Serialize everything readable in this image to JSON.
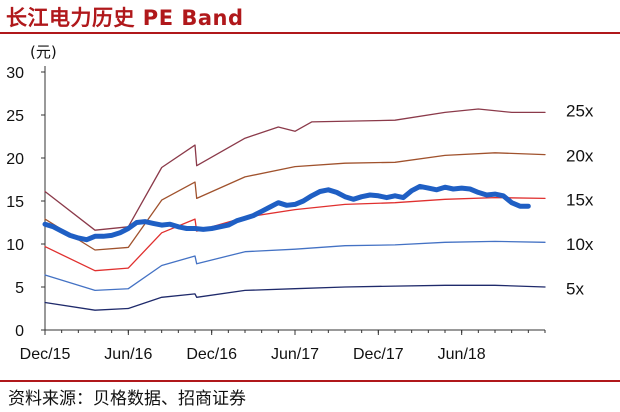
{
  "title": "长江电力历史 PE Band",
  "source": "资料来源：贝格数据、招商证券",
  "chart_data": {
    "type": "line",
    "title": "长江电力历史 PE Band",
    "ylabel": "(元)",
    "ylim": [
      0,
      30
    ],
    "yticks": [
      "0",
      "5",
      "10",
      "15",
      "20",
      "25",
      "30"
    ],
    "xticks": [
      "Dec/15",
      "Jun/16",
      "Dec/16",
      "Jun/17",
      "Dec/17",
      "Jun/18"
    ],
    "grid": false,
    "series": [
      {
        "name": "5x",
        "color": "#1f2a6b",
        "points": [
          [
            0,
            3.2
          ],
          [
            6,
            2.3
          ],
          [
            10,
            2.5
          ],
          [
            14,
            3.8
          ],
          [
            18,
            4.2
          ],
          [
            18.2,
            3.8
          ],
          [
            24,
            4.6
          ],
          [
            30,
            4.8
          ],
          [
            36,
            5.0
          ],
          [
            42,
            5.1
          ],
          [
            48,
            5.2
          ],
          [
            54,
            5.2
          ],
          [
            60,
            5.0
          ]
        ]
      },
      {
        "name": "10x",
        "color": "#4472c4",
        "points": [
          [
            0,
            6.4
          ],
          [
            6,
            4.6
          ],
          [
            10,
            4.8
          ],
          [
            14,
            7.5
          ],
          [
            18,
            8.6
          ],
          [
            18.2,
            7.7
          ],
          [
            24,
            9.1
          ],
          [
            30,
            9.4
          ],
          [
            36,
            9.8
          ],
          [
            42,
            9.9
          ],
          [
            48,
            10.2
          ],
          [
            54,
            10.3
          ],
          [
            60,
            10.2
          ]
        ]
      },
      {
        "name": "15x",
        "color": "#e0302f",
        "points": [
          [
            0,
            9.7
          ],
          [
            6,
            6.9
          ],
          [
            10,
            7.2
          ],
          [
            14,
            11.3
          ],
          [
            18,
            12.9
          ],
          [
            18.2,
            11.5
          ],
          [
            24,
            13.1
          ],
          [
            30,
            14.0
          ],
          [
            36,
            14.6
          ],
          [
            42,
            14.8
          ],
          [
            48,
            15.2
          ],
          [
            54,
            15.4
          ],
          [
            60,
            15.3
          ]
        ]
      },
      {
        "name": "20x",
        "color": "#a0522d",
        "points": [
          [
            0,
            12.9
          ],
          [
            6,
            9.3
          ],
          [
            10,
            9.6
          ],
          [
            14,
            15.1
          ],
          [
            18,
            17.2
          ],
          [
            18.2,
            15.3
          ],
          [
            24,
            17.8
          ],
          [
            30,
            19.0
          ],
          [
            36,
            19.4
          ],
          [
            42,
            19.5
          ],
          [
            48,
            20.3
          ],
          [
            54,
            20.6
          ],
          [
            60,
            20.4
          ]
        ]
      },
      {
        "name": "25x",
        "color": "#8b3a4a",
        "points": [
          [
            0,
            16.1
          ],
          [
            6,
            11.6
          ],
          [
            10,
            12.0
          ],
          [
            14,
            18.9
          ],
          [
            18,
            21.5
          ],
          [
            18.2,
            19.1
          ],
          [
            24,
            22.3
          ],
          [
            28,
            23.6
          ],
          [
            30,
            23.1
          ],
          [
            32,
            24.2
          ],
          [
            42,
            24.4
          ],
          [
            48,
            25.3
          ],
          [
            52,
            25.7
          ],
          [
            56,
            25.3
          ],
          [
            60,
            25.3
          ]
        ]
      },
      {
        "name": "",
        "color": "#1f5fc4",
        "points": [
          [
            0,
            12.3
          ],
          [
            1,
            12.0
          ],
          [
            2,
            11.5
          ],
          [
            3,
            11.0
          ],
          [
            4,
            10.7
          ],
          [
            5,
            10.5
          ],
          [
            6,
            10.9
          ],
          [
            7,
            10.9
          ],
          [
            8,
            11.0
          ],
          [
            9,
            11.3
          ],
          [
            10,
            11.8
          ],
          [
            11,
            12.5
          ],
          [
            12,
            12.6
          ],
          [
            13,
            12.4
          ],
          [
            14,
            12.2
          ],
          [
            15,
            12.3
          ],
          [
            16,
            12.0
          ],
          [
            17,
            11.8
          ],
          [
            18,
            11.8
          ],
          [
            19,
            11.7
          ],
          [
            20,
            11.8
          ],
          [
            21,
            12.0
          ],
          [
            22,
            12.2
          ],
          [
            23,
            12.7
          ],
          [
            24,
            13.0
          ],
          [
            25,
            13.3
          ],
          [
            26,
            13.8
          ],
          [
            27,
            14.3
          ],
          [
            28,
            14.8
          ],
          [
            29,
            14.5
          ],
          [
            30,
            14.6
          ],
          [
            31,
            15.0
          ],
          [
            32,
            15.6
          ],
          [
            33,
            16.1
          ],
          [
            34,
            16.3
          ],
          [
            35,
            16.0
          ],
          [
            36,
            15.5
          ],
          [
            37,
            15.2
          ],
          [
            38,
            15.5
          ],
          [
            39,
            15.7
          ],
          [
            40,
            15.6
          ],
          [
            41,
            15.4
          ],
          [
            42,
            15.6
          ],
          [
            43,
            15.4
          ],
          [
            44,
            16.2
          ],
          [
            45,
            16.7
          ],
          [
            46,
            16.5
          ],
          [
            47,
            16.3
          ],
          [
            48,
            16.6
          ],
          [
            49,
            16.4
          ],
          [
            50,
            16.5
          ],
          [
            51,
            16.4
          ],
          [
            52,
            16.0
          ],
          [
            53,
            15.7
          ],
          [
            54,
            15.8
          ],
          [
            55,
            15.6
          ],
          [
            56,
            14.8
          ],
          [
            57,
            14.4
          ],
          [
            58,
            14.4
          ]
        ]
      }
    ],
    "band_labels": [
      "25x",
      "20x",
      "15x",
      "10x",
      "5x"
    ]
  }
}
